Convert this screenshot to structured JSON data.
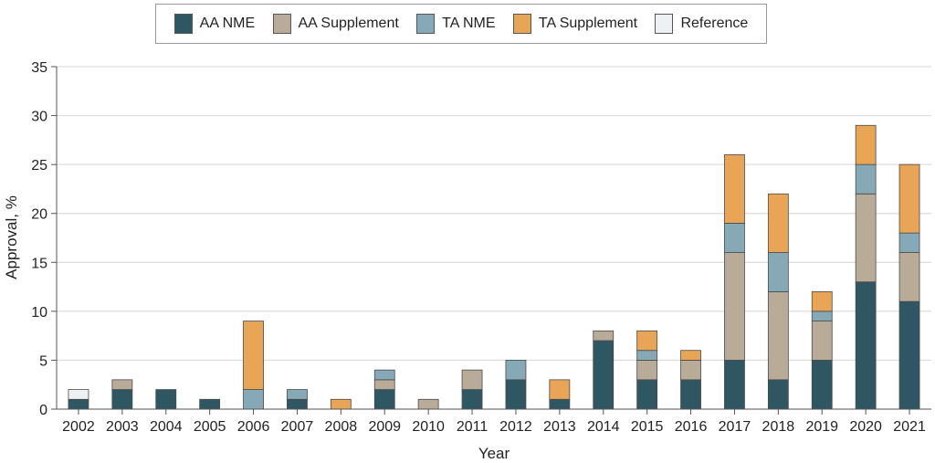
{
  "chart_data": {
    "type": "bar",
    "stacked": true,
    "xlabel": "Year",
    "ylabel": "Approval, %",
    "ylim": [
      0,
      35
    ],
    "yticks": [
      0,
      5,
      10,
      15,
      20,
      25,
      30,
      35
    ],
    "grid": true,
    "legend_position": "top",
    "categories": [
      "2002",
      "2003",
      "2004",
      "2005",
      "2006",
      "2007",
      "2008",
      "2009",
      "2010",
      "2011",
      "2012",
      "2013",
      "2014",
      "2015",
      "2016",
      "2017",
      "2018",
      "2019",
      "2020",
      "2021"
    ],
    "series": [
      {
        "name": "AA NME",
        "color": "#2e5763",
        "values": [
          1,
          2,
          2,
          1,
          0,
          1,
          0,
          2,
          0,
          2,
          3,
          1,
          7,
          3,
          3,
          5,
          3,
          5,
          13,
          11
        ]
      },
      {
        "name": "AA Supplement",
        "color": "#b8ab98",
        "values": [
          0,
          1,
          0,
          0,
          0,
          0,
          0,
          1,
          1,
          2,
          0,
          0,
          1,
          2,
          2,
          11,
          9,
          4,
          9,
          5
        ]
      },
      {
        "name": "TA NME",
        "color": "#86a9b7",
        "values": [
          0,
          0,
          0,
          0,
          2,
          1,
          0,
          1,
          0,
          0,
          2,
          0,
          0,
          1,
          0,
          3,
          4,
          1,
          3,
          2
        ]
      },
      {
        "name": "TA Supplement",
        "color": "#e8a555",
        "values": [
          0,
          0,
          0,
          0,
          7,
          0,
          1,
          0,
          0,
          0,
          0,
          2,
          0,
          2,
          1,
          7,
          6,
          2,
          4,
          7
        ]
      },
      {
        "name": "Reference",
        "color": "#eef1f4",
        "values": [
          1,
          0,
          0,
          0,
          0,
          0,
          0,
          0,
          0,
          0,
          0,
          0,
          0,
          0,
          0,
          0,
          0,
          0,
          0,
          0
        ]
      }
    ]
  }
}
